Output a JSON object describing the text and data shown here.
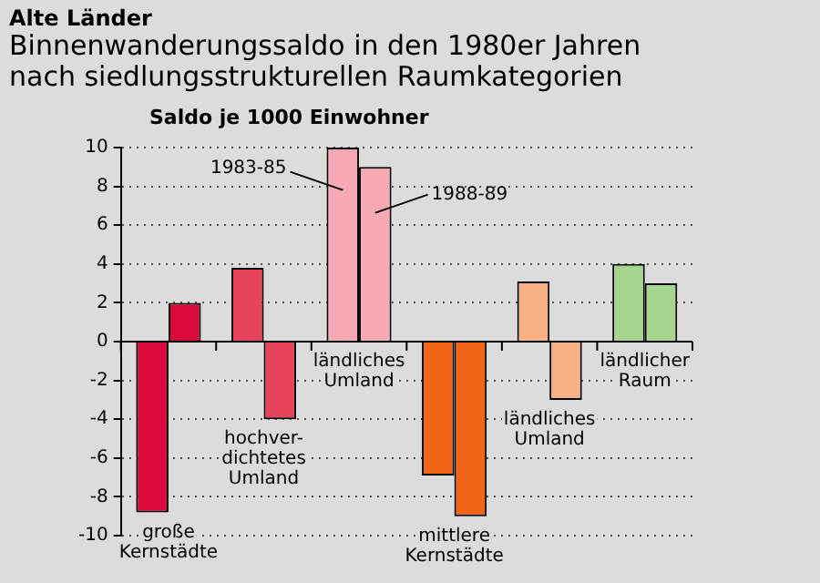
{
  "chart_data": {
    "type": "bar",
    "subtitle": "Alte Länder",
    "title": "Binnenwanderungssaldo in den 1980er Jahren\nnach siedlungsstrukturellen Raumkategorien",
    "ylabel": "Saldo je 1000 Einwohner",
    "categories": [
      "große\nKernstädte",
      "hochver-\ndichtetes\nUmland",
      "ländliches\nUmland",
      "mittlere\nKernstädte",
      "ländliches\nUmland",
      "ländlicher\nRaum"
    ],
    "series": [
      {
        "name": "1983-85",
        "colors": [
          "#d80a3a",
          "#e8435c",
          "#f8aab4",
          "#f26418",
          "#f8b084",
          "#a6d68e"
        ],
        "values": [
          -8.8,
          3.8,
          10.0,
          -6.9,
          3.1,
          4.0
        ]
      },
      {
        "name": "1988-89",
        "colors": [
          "#d80a3a",
          "#e8435c",
          "#f8aab4",
          "#f26418",
          "#f8b084",
          "#a6d68e"
        ],
        "values": [
          2.0,
          -4.0,
          9.0,
          -9.0,
          -3.0,
          3.0
        ]
      }
    ],
    "ylim": [
      -10,
      10
    ],
    "yticks": [
      -10,
      -8,
      -6,
      -4,
      -2,
      0,
      2,
      4,
      6,
      8,
      10
    ],
    "grid": "y",
    "legend": false
  }
}
